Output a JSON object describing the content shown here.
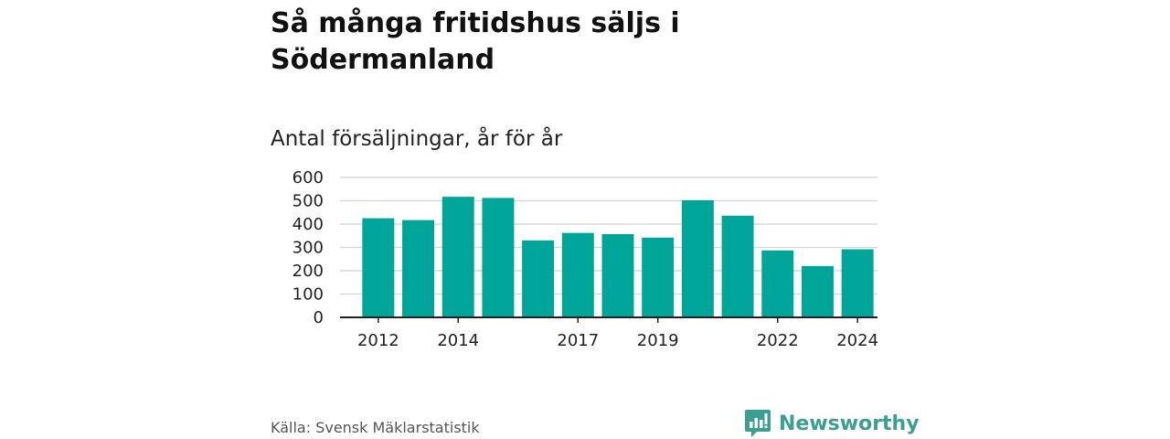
{
  "header": {
    "title": "Så många fritidshus säljs i Södermanland",
    "subtitle": "Antal försäljningar, år för år"
  },
  "footer": {
    "source": "Källa: Svensk Mäklarstatistik",
    "brand": "Newsworthy",
    "brand_icon": "newsworthy-logo-icon"
  },
  "colors": {
    "bar": "#00a59a",
    "grid": "#d9d9d9",
    "axis": "#222222",
    "brand": "#3d9e93"
  },
  "chart_data": {
    "type": "bar",
    "categories": [
      "2012",
      "2013",
      "2014",
      "2015",
      "2016",
      "2017",
      "2018",
      "2019",
      "2020",
      "2021",
      "2022",
      "2023",
      "2024"
    ],
    "values": [
      425,
      417,
      517,
      512,
      330,
      362,
      357,
      342,
      502,
      436,
      287,
      220,
      292
    ],
    "x_tick_labels": [
      "2012",
      "2014",
      "2017",
      "2019",
      "2022",
      "2024"
    ],
    "title": "Så många fritidshus säljs i Södermanland",
    "subtitle": "Antal försäljningar, år för år",
    "xlabel": "",
    "ylabel": "",
    "ylim": [
      0,
      600
    ],
    "yticks": [
      0,
      100,
      200,
      300,
      400,
      500,
      600
    ],
    "grid": true,
    "legend": "none"
  }
}
